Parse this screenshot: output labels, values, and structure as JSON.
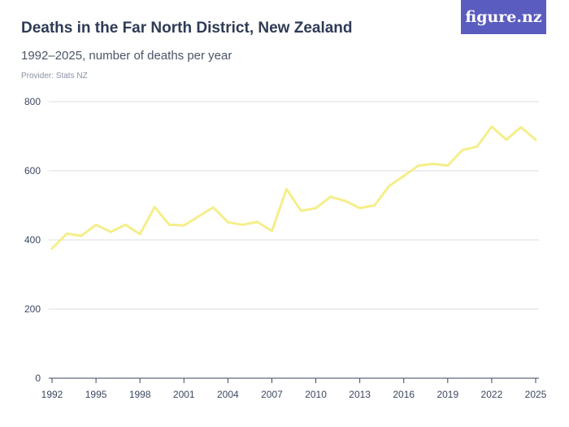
{
  "header": {
    "title": "Deaths in the Far North District, New Zealand",
    "subtitle": "1992–2025, number of deaths per year",
    "provider": "Provider: Stats NZ",
    "logo_text": "figure.nz"
  },
  "colors": {
    "line": "#f5ee8a",
    "grid": "#d9dce1",
    "axis": "#3b4660",
    "logo_bg": "#5b5cbf"
  },
  "chart_data": {
    "type": "line",
    "title": "Deaths in the Far North District, New Zealand",
    "subtitle": "1992–2025, number of deaths per year",
    "xlabel": "",
    "ylabel": "",
    "ylim": [
      0,
      800
    ],
    "xlim": [
      1992,
      2025
    ],
    "y_ticks": [
      0,
      200,
      400,
      600,
      800
    ],
    "x_ticks": [
      1992,
      1995,
      1998,
      2001,
      2004,
      2007,
      2010,
      2013,
      2016,
      2019,
      2022,
      2025
    ],
    "grid": true,
    "legend": "none",
    "x": [
      1992,
      1993,
      1994,
      1995,
      1996,
      1997,
      1998,
      1999,
      2000,
      2001,
      2002,
      2003,
      2004,
      2005,
      2006,
      2007,
      2008,
      2009,
      2010,
      2011,
      2012,
      2013,
      2014,
      2015,
      2016,
      2017,
      2018,
      2019,
      2020,
      2021,
      2022,
      2023,
      2024,
      2025
    ],
    "series": [
      {
        "values": [
          375,
          418,
          412,
          444,
          423,
          444,
          417,
          495,
          444,
          442,
          468,
          494,
          451,
          444,
          452,
          426,
          547,
          484,
          492,
          525,
          513,
          492,
          500,
          556,
          585,
          615,
          620,
          615,
          660,
          670,
          728,
          690,
          726,
          690
        ]
      }
    ]
  }
}
